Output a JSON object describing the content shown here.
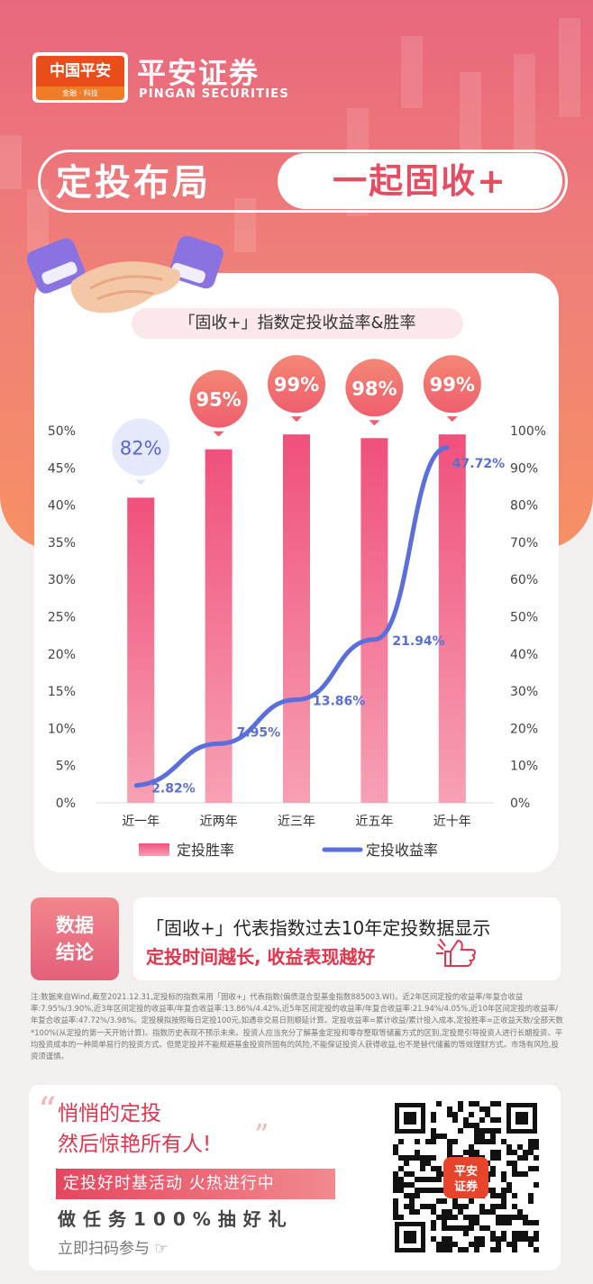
{
  "header": {
    "logo_main": "中国平安",
    "logo_sub": "金融 · 科技",
    "brand_cn": "平安证券",
    "brand_en": "PINGAN SECURITIES"
  },
  "banner": {
    "left": "定投布局",
    "right": "一起固收+"
  },
  "chart_title": "「固收+」指数定投收益率&胜率",
  "chart_data": {
    "type": "bar",
    "categories": [
      "近一年",
      "近两年",
      "近三年",
      "近五年",
      "近十年"
    ],
    "series": [
      {
        "name": "定投胜率",
        "axis": "right",
        "values": [
          82,
          95,
          99,
          98,
          99
        ],
        "labels": [
          "82%",
          "95%",
          "99%",
          "98%",
          "99%"
        ],
        "color": "#f0567f"
      },
      {
        "name": "定投收益率",
        "type": "line",
        "axis": "left",
        "values": [
          2.82,
          7.95,
          13.86,
          21.94,
          47.72
        ],
        "labels": [
          "2.82%",
          "7.95%",
          "13.86%",
          "21.94%",
          "47.72%"
        ],
        "color": "#5b6fdc"
      }
    ],
    "y_left": {
      "min": 0,
      "max": 50,
      "ticks": [
        "0%",
        "5%",
        "10%",
        "15%",
        "20%",
        "25%",
        "30%",
        "35%",
        "40%",
        "45%",
        "50%"
      ]
    },
    "y_right": {
      "min": 0,
      "max": 100,
      "ticks": [
        "0%",
        "10%",
        "20%",
        "30%",
        "40%",
        "50%",
        "60%",
        "70%",
        "80%",
        "90%",
        "100%"
      ]
    },
    "legend_position": "bottom"
  },
  "conclusion": {
    "tag_line1": "数据",
    "tag_line2": "结论",
    "line1": "「固收+」代表指数过去10年定投数据显示",
    "line2": "定投时间越长, 收益表现越好"
  },
  "note": "注:数据来自Wind,截至2021.12.31,定投标的指数采用「固收+」代表指数(偏债混合型基金指数885003.WI)。近2年区间定投的收益率/年复合收益率:7.95%/3.90%,近3年区间定投的收益率/年复合收益率:13.86%/4.42%,近5年区间定投的收益率/年复合收益率:21.94%/4.05%,近10年区间定投的收益率/年复合收益率:47.72%/3.98%。定投模拟按照每日定投100元,如遇非交易日则顺延计算。定投收益率=累计收益/累计投入成本,定投胜率=正收益天数/全部天数*100%(从定投的第一天开始计算)。指数历史表现不预示未来。投资人应当充分了解基金定投和零存整取等储蓄方式的区别,定投是引导投资人进行长期投资、平均投资成本的一种简单易行的投资方式。但是定投并不能规避基金投资所固有的风险,不能保证投资人获得收益,也不是替代储蓄的等效理财方式。市场有风险,投资须谨慎。",
  "promo": {
    "line1": "悄悄的定投",
    "line2": "然后惊艳所有人!",
    "event": "定投好时基活动 火热进行中",
    "task": "做任务100%抽好礼",
    "scan": "立即扫码参与",
    "qr_logo_1": "平安",
    "qr_logo_2": "证券"
  }
}
